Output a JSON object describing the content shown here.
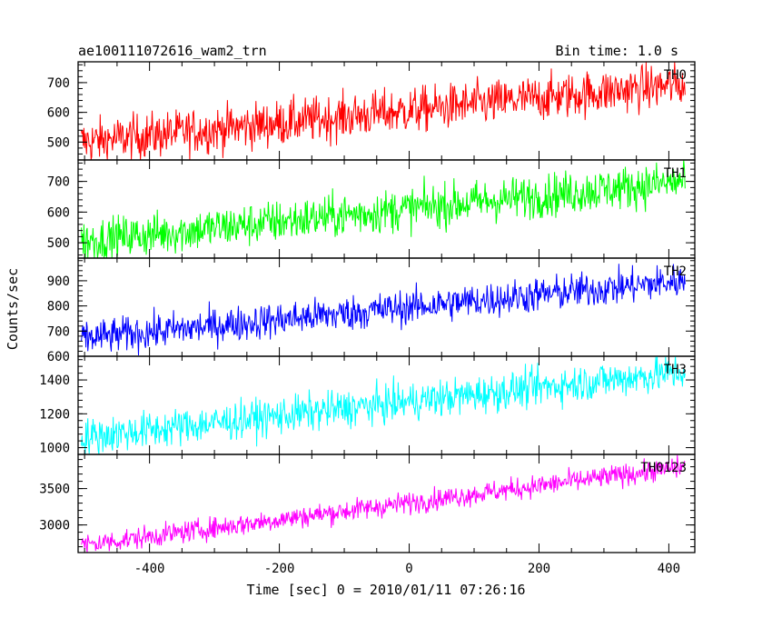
{
  "header": {
    "title": "ae100111072616_wam2_trn",
    "bin_time": "Bin time: 1.0 s"
  },
  "axes": {
    "xlabel": "Time [sec] 0 = 2010/01/11 07:26:16",
    "ylabel": "Counts/sec"
  },
  "chart_data": {
    "type": "line",
    "title": "ae100111072616_wam2_trn",
    "subtitle": "Bin time: 1.0 s",
    "xlabel": "Time [sec] 0 = 2010/01/11 07:26:16",
    "ylabel": "Counts/sec",
    "xlim": [
      -510,
      440
    ],
    "x_ticks": [
      -400,
      -200,
      0,
      200,
      400
    ],
    "x_data_range": [
      -505,
      425
    ],
    "bin_time_s": 1.0,
    "panels": [
      {
        "name": "TH0",
        "color": "#ff0000",
        "ylim": [
          440,
          770
        ],
        "y_ticks": [
          500,
          600,
          700
        ],
        "trend_start": 500,
        "trend_end": 695,
        "noise": 38
      },
      {
        "name": "TH1",
        "color": "#00ff00",
        "ylim": [
          450,
          770
        ],
        "y_ticks": [
          500,
          600,
          700
        ],
        "trend_start": 505,
        "trend_end": 700,
        "noise": 35
      },
      {
        "name": "TH2",
        "color": "#0000ff",
        "ylim": [
          600,
          990
        ],
        "y_ticks": [
          600,
          700,
          800,
          900
        ],
        "trend_start": 670,
        "trend_end": 900,
        "noise": 35
      },
      {
        "name": "TH3",
        "color": "#00ffff",
        "ylim": [
          960,
          1540
        ],
        "y_ticks": [
          1000,
          1200,
          1400
        ],
        "trend_start": 1060,
        "trend_end": 1450,
        "noise": 55
      },
      {
        "name": "TH0123",
        "color": "#ff00ff",
        "ylim": [
          2620,
          3970
        ],
        "y_ticks": [
          3000,
          3500
        ],
        "trend_start": 2720,
        "trend_end": 3800,
        "noise": 75
      }
    ]
  }
}
